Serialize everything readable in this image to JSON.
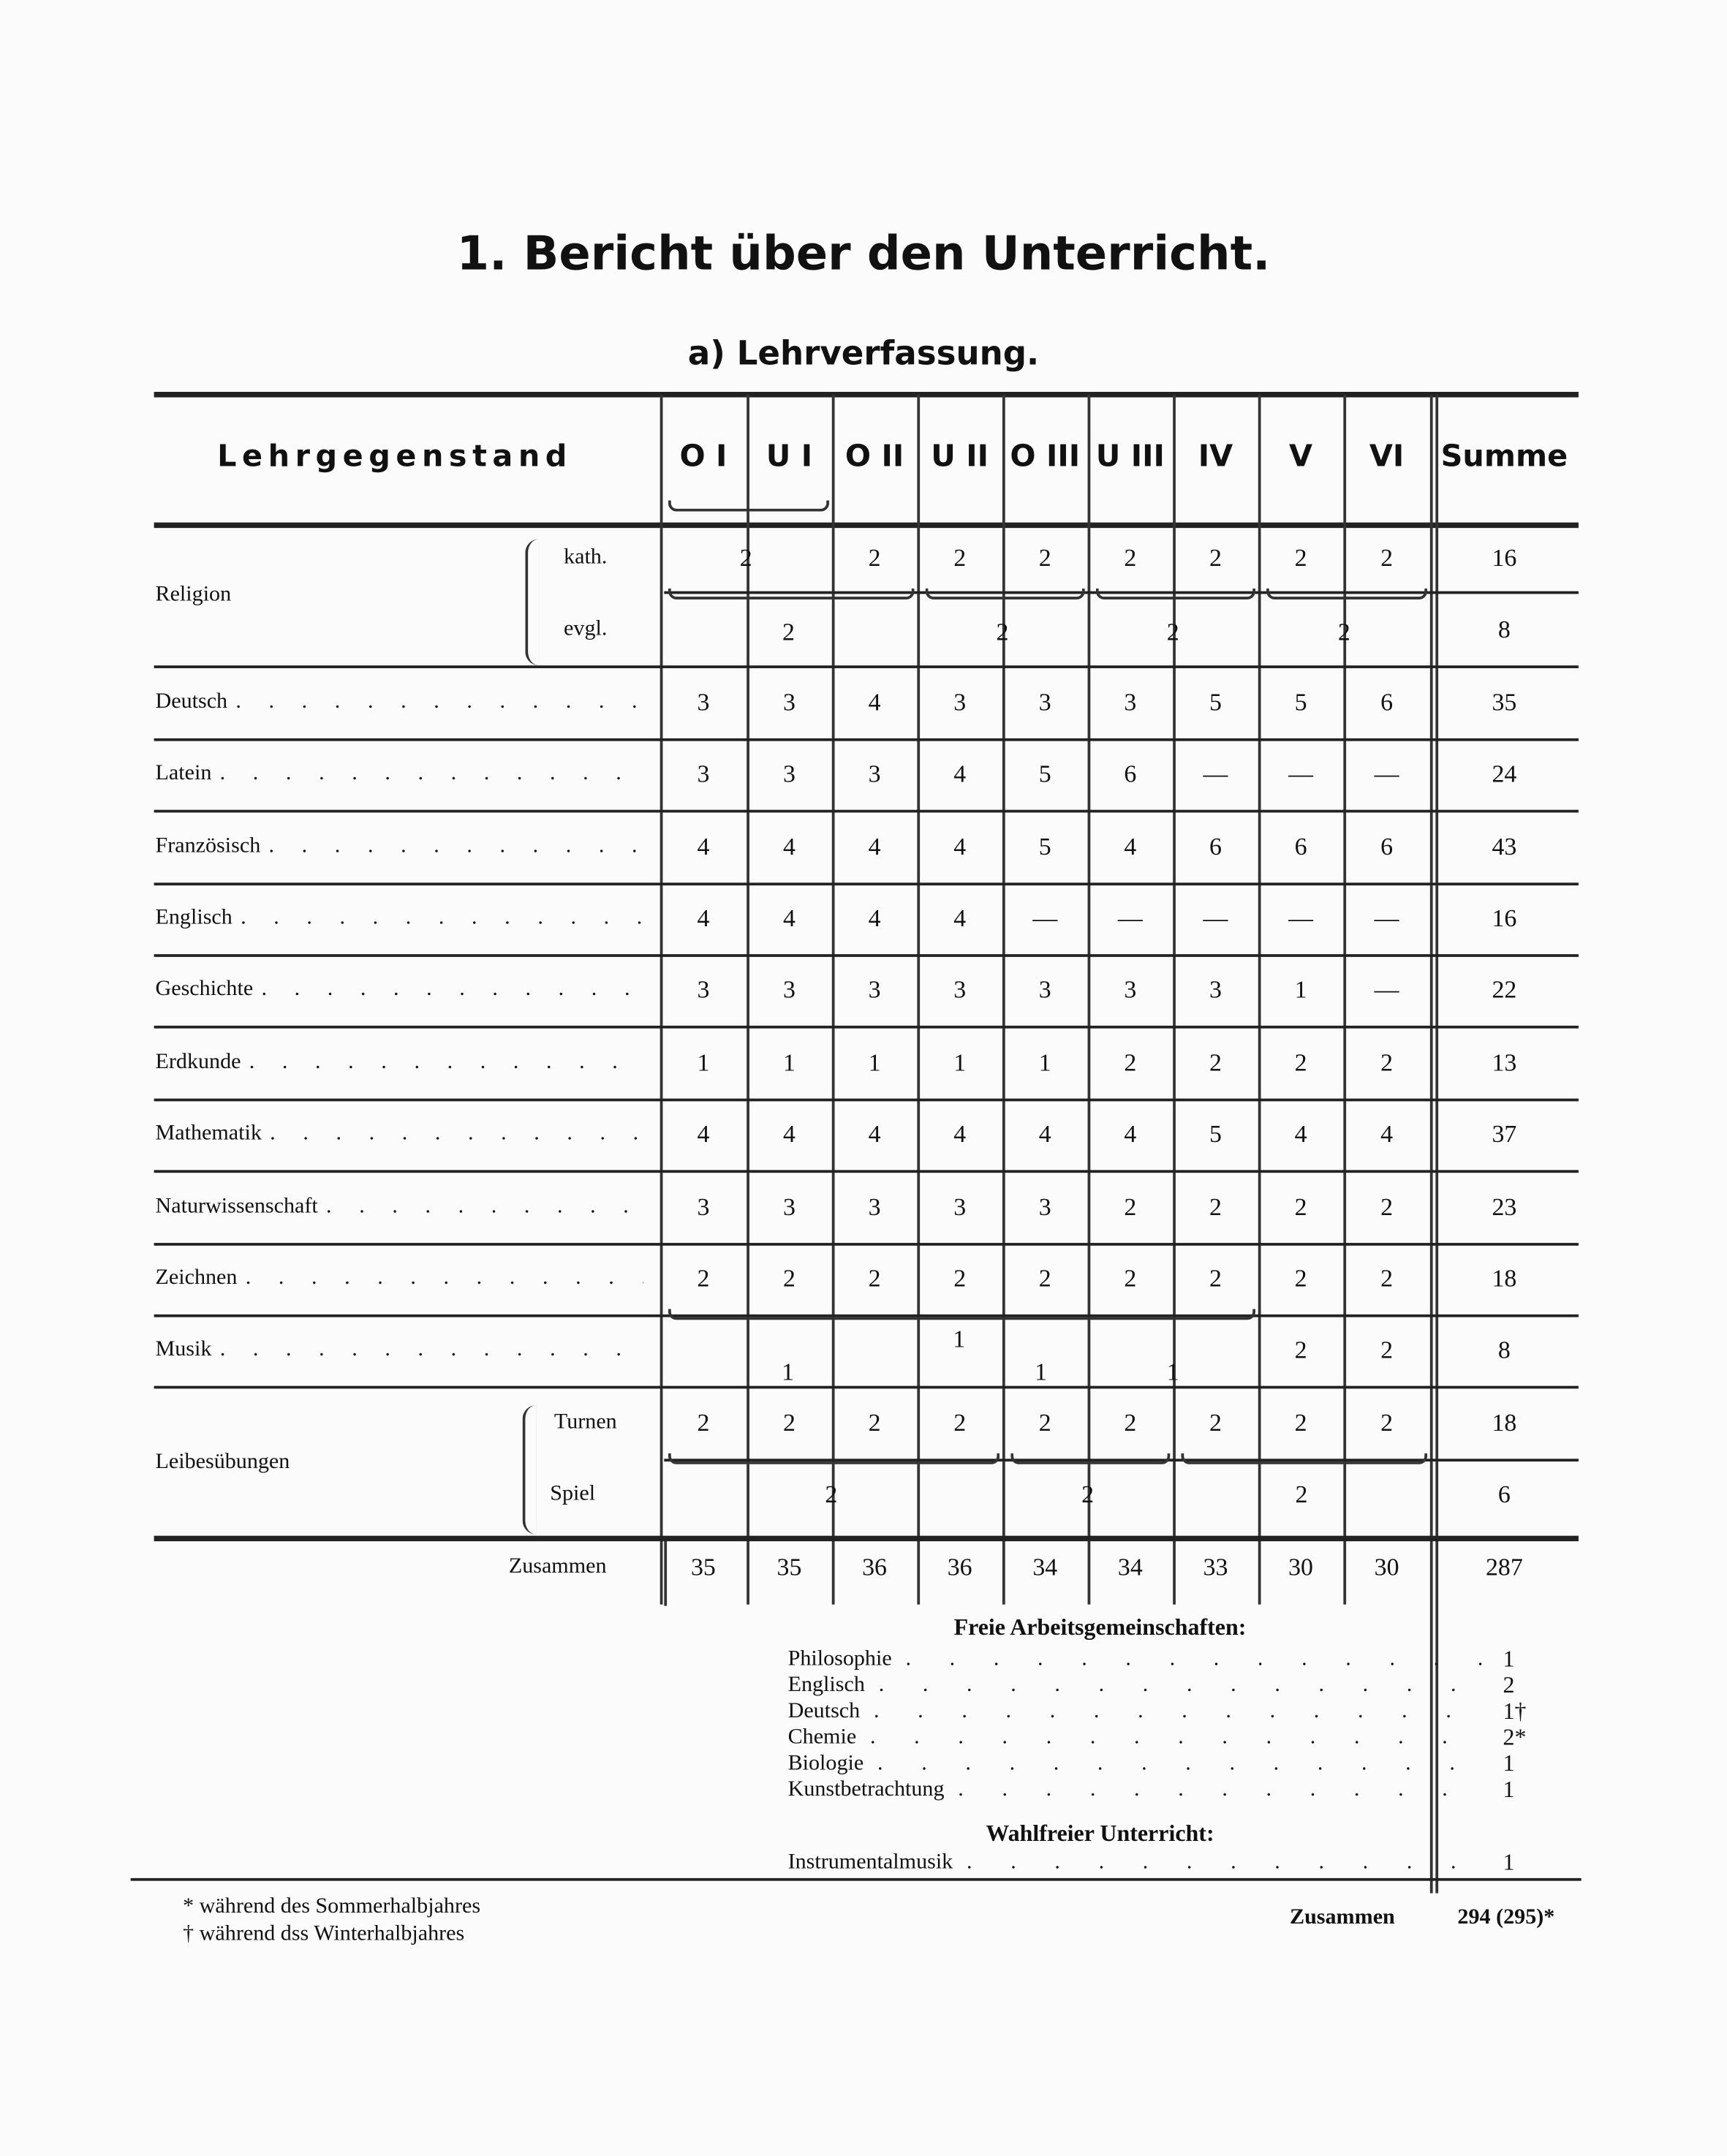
{
  "title": "1. Bericht über den Unterricht.",
  "subtitle": "a) Lehrverfassung.",
  "table": {
    "header": {
      "subject": "Lehrgegenstand",
      "classes": [
        "O I",
        "U I",
        "O II",
        "U II",
        "O III",
        "U III",
        "IV",
        "V",
        "VI"
      ],
      "sum": "Summe"
    },
    "rows": [
      {
        "label": "",
        "sub": "kath.",
        "cells": [
          {
            "v": "2",
            "span": 2
          },
          {
            "v": "2"
          },
          {
            "v": "2"
          },
          {
            "v": "2"
          },
          {
            "v": "2"
          },
          {
            "v": "2"
          },
          {
            "v": "2"
          },
          {
            "v": "2"
          }
        ],
        "sum": "16"
      },
      {
        "label": "",
        "sub": "evgl.",
        "cells": [
          {
            "v": "2",
            "span": 3
          },
          {
            "v": "2",
            "span": 2
          },
          {
            "v": "2",
            "span": 2
          },
          {
            "v": "2",
            "span": 2
          }
        ],
        "sum": "8"
      },
      {
        "label": "Deutsch",
        "cells": [
          {
            "v": "3"
          },
          {
            "v": "3"
          },
          {
            "v": "4"
          },
          {
            "v": "3"
          },
          {
            "v": "3"
          },
          {
            "v": "3"
          },
          {
            "v": "5"
          },
          {
            "v": "5"
          },
          {
            "v": "6"
          }
        ],
        "sum": "35"
      },
      {
        "label": "Latein",
        "cells": [
          {
            "v": "3"
          },
          {
            "v": "3"
          },
          {
            "v": "3"
          },
          {
            "v": "4"
          },
          {
            "v": "5"
          },
          {
            "v": "6"
          },
          {
            "v": "—"
          },
          {
            "v": "—"
          },
          {
            "v": "—"
          }
        ],
        "sum": "24"
      },
      {
        "label": "Französisch",
        "cells": [
          {
            "v": "4"
          },
          {
            "v": "4"
          },
          {
            "v": "4"
          },
          {
            "v": "4"
          },
          {
            "v": "5"
          },
          {
            "v": "4"
          },
          {
            "v": "6"
          },
          {
            "v": "6"
          },
          {
            "v": "6"
          }
        ],
        "sum": "43"
      },
      {
        "label": "Englisch",
        "cells": [
          {
            "v": "4"
          },
          {
            "v": "4"
          },
          {
            "v": "4"
          },
          {
            "v": "4"
          },
          {
            "v": "—"
          },
          {
            "v": "—"
          },
          {
            "v": "—"
          },
          {
            "v": "—"
          },
          {
            "v": "—"
          }
        ],
        "sum": "16"
      },
      {
        "label": "Geschichte",
        "cells": [
          {
            "v": "3"
          },
          {
            "v": "3"
          },
          {
            "v": "3"
          },
          {
            "v": "3"
          },
          {
            "v": "3"
          },
          {
            "v": "3"
          },
          {
            "v": "3"
          },
          {
            "v": "1"
          },
          {
            "v": "—"
          }
        ],
        "sum": "22"
      },
      {
        "label": "Erdkunde",
        "cells": [
          {
            "v": "1"
          },
          {
            "v": "1"
          },
          {
            "v": "1"
          },
          {
            "v": "1"
          },
          {
            "v": "1"
          },
          {
            "v": "2"
          },
          {
            "v": "2"
          },
          {
            "v": "2"
          },
          {
            "v": "2"
          }
        ],
        "sum": "13"
      },
      {
        "label": "Mathematik",
        "cells": [
          {
            "v": "4"
          },
          {
            "v": "4"
          },
          {
            "v": "4"
          },
          {
            "v": "4"
          },
          {
            "v": "4"
          },
          {
            "v": "4"
          },
          {
            "v": "5"
          },
          {
            "v": "4"
          },
          {
            "v": "4"
          }
        ],
        "sum": "37"
      },
      {
        "label": "Naturwissenschaft",
        "cells": [
          {
            "v": "3"
          },
          {
            "v": "3"
          },
          {
            "v": "3"
          },
          {
            "v": "3"
          },
          {
            "v": "3"
          },
          {
            "v": "2"
          },
          {
            "v": "2"
          },
          {
            "v": "2"
          },
          {
            "v": "2"
          }
        ],
        "sum": "23"
      },
      {
        "label": "Zeichnen",
        "cells": [
          {
            "v": "2"
          },
          {
            "v": "2"
          },
          {
            "v": "2"
          },
          {
            "v": "2"
          },
          {
            "v": "2"
          },
          {
            "v": "2"
          },
          {
            "v": "2"
          },
          {
            "v": "2"
          },
          {
            "v": "2"
          }
        ],
        "sum": "18"
      },
      {
        "label": "Musik",
        "cells": [
          {
            "v": "1",
            "span": 7
          },
          {
            "v": "2"
          },
          {
            "v": "2"
          }
        ],
        "lower": [
          "1",
          "1",
          "1"
        ],
        "sum": "8"
      },
      {
        "label": "",
        "sub": "Turnen",
        "cells": [
          {
            "v": "2"
          },
          {
            "v": "2"
          },
          {
            "v": "2"
          },
          {
            "v": "2"
          },
          {
            "v": "2"
          },
          {
            "v": "2"
          },
          {
            "v": "2"
          },
          {
            "v": "2"
          },
          {
            "v": "2"
          }
        ],
        "sum": "18"
      },
      {
        "label": "",
        "sub": "Spiel",
        "cells": [
          {
            "v": "2",
            "span": 4
          },
          {
            "v": "2",
            "span": 2
          },
          {
            "v": "2",
            "span": 3
          }
        ],
        "sum": "6"
      },
      {
        "label": "",
        "sub": "Zusammen",
        "cells": [
          {
            "v": "35"
          },
          {
            "v": "35"
          },
          {
            "v": "36"
          },
          {
            "v": "36"
          },
          {
            "v": "34"
          },
          {
            "v": "34"
          },
          {
            "v": "33"
          },
          {
            "v": "30"
          },
          {
            "v": "30"
          }
        ],
        "sum": "287"
      }
    ],
    "group_labels": {
      "religion": "Religion",
      "leibesuebungen": "Leibesübungen"
    }
  },
  "freie": {
    "title": "Freie Arbeitsgemeinschaften:",
    "items": [
      {
        "name": "Philosophie",
        "value": "1"
      },
      {
        "name": "Englisch",
        "value": "2"
      },
      {
        "name": "Deutsch",
        "value": "1†"
      },
      {
        "name": "Chemie",
        "value": "2*"
      },
      {
        "name": "Biologie",
        "value": "1"
      },
      {
        "name": "Kunstbetrachtung",
        "value": "1"
      }
    ]
  },
  "wahlfrei": {
    "title": "Wahlfreier Unterricht:",
    "items": [
      {
        "name": "Instrumentalmusik",
        "value": "1"
      }
    ]
  },
  "total": {
    "label": "Zusammen",
    "value": "294 (295)*"
  },
  "footnotes": [
    "* während des Sommerhalbjahres",
    "† während dss Winterhalbjahres"
  ]
}
